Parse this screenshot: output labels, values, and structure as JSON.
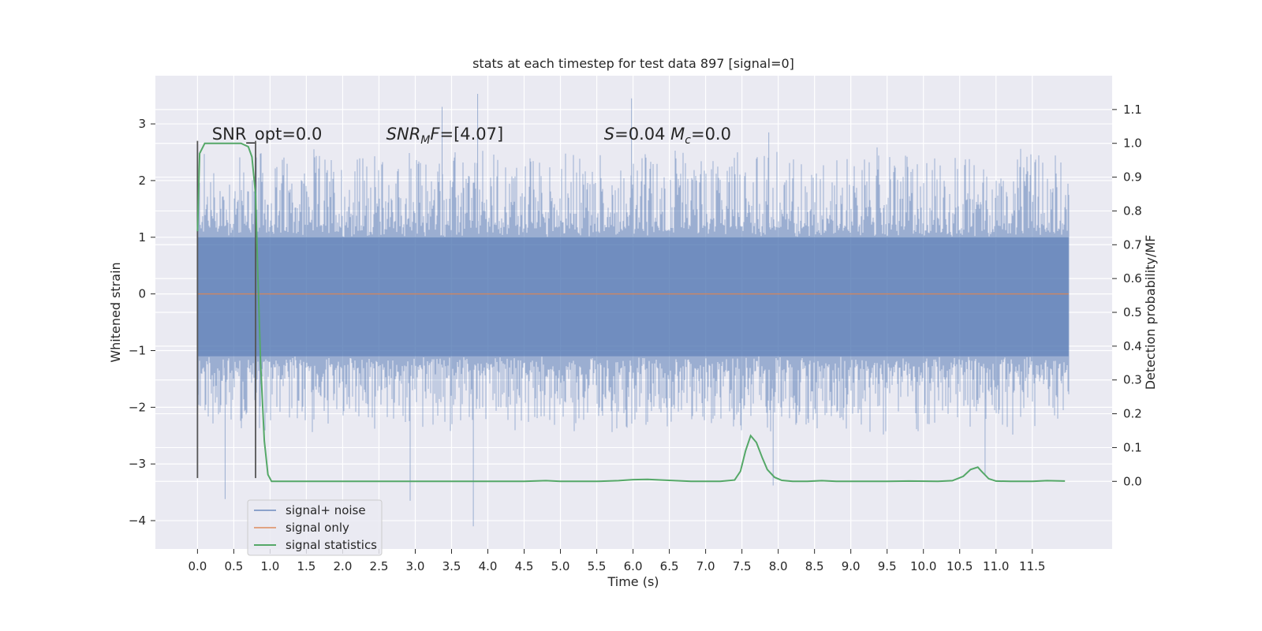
{
  "chart_data": {
    "type": "line",
    "title": "stats at each timestep for test data 897 [signal=0]",
    "xlabel": "Time (s)",
    "ylabel": "Whitened strain",
    "y2label": "Detection probability/MF",
    "xlim": [
      -0.58,
      12.6
    ],
    "ylim": [
      -4.5,
      3.85
    ],
    "y2lim": [
      -0.2,
      1.2
    ],
    "x_ticks": [
      0.0,
      0.5,
      1.0,
      1.5,
      2.0,
      2.5,
      3.0,
      3.5,
      4.0,
      4.5,
      5.0,
      5.5,
      6.0,
      6.5,
      7.0,
      7.5,
      8.0,
      8.5,
      9.0,
      9.5,
      10.0,
      10.5,
      11.0,
      11.5
    ],
    "x_tick_labels": [
      "0.0",
      "0.5",
      "1.0",
      "1.5",
      "2.0",
      "2.5",
      "3.0",
      "3.5",
      "4.0",
      "4.5",
      "5.0",
      "5.5",
      "6.0",
      "6.5",
      "7.0",
      "7.5",
      "8.0",
      "8.5",
      "9.0",
      "9.5",
      "10.0",
      "10.5",
      "11.0",
      "11.5"
    ],
    "y_ticks": [
      -4,
      -3,
      -2,
      -1,
      0,
      1,
      2,
      3
    ],
    "y_tick_labels": [
      "−4",
      "−3",
      "−2",
      "−1",
      "0",
      "1",
      "2",
      "3"
    ],
    "y2_ticks": [
      0.0,
      0.1,
      0.2,
      0.3,
      0.4,
      0.5,
      0.6,
      0.7,
      0.8,
      0.9,
      1.0,
      1.1
    ],
    "y2_tick_labels": [
      "0.0",
      "0.1",
      "0.2",
      "0.3",
      "0.4",
      "0.5",
      "0.6",
      "0.7",
      "0.8",
      "0.9",
      "1.0",
      "1.1"
    ],
    "grid": true,
    "legend_position": "lower-left",
    "colors": {
      "background": "#eaeaf2",
      "grid": "#ffffff",
      "noise": "#4c72b0",
      "signal": "#dd8452",
      "stats": "#55a868",
      "marker": "#555555"
    },
    "series": [
      {
        "name": "signal+ noise",
        "axis": "left",
        "x_range": [
          0.0,
          12.0
        ],
        "band": [
          -1.1,
          1.0
        ],
        "envelope_typical": [
          -2.3,
          2.4
        ],
        "extremes": [
          {
            "x": 0.38,
            "y": -3.62
          },
          {
            "x": 2.93,
            "y": -3.65
          },
          {
            "x": 3.37,
            "y": 3.3
          },
          {
            "x": 3.8,
            "y": -4.1
          },
          {
            "x": 3.86,
            "y": 3.53
          },
          {
            "x": 5.98,
            "y": 3.45
          },
          {
            "x": 7.87,
            "y": 2.85
          },
          {
            "x": 7.93,
            "y": -3.38
          },
          {
            "x": 10.85,
            "y": -3.2
          }
        ]
      },
      {
        "name": "signal only",
        "axis": "left",
        "x": [
          0.0,
          12.0
        ],
        "y": [
          0.0,
          0.0
        ]
      },
      {
        "name": "signal statistics",
        "axis": "right",
        "x": [
          0.0,
          0.03,
          0.1,
          0.17,
          0.3,
          0.45,
          0.6,
          0.7,
          0.75,
          0.8,
          0.83,
          0.87,
          0.92,
          0.97,
          1.02,
          1.1,
          1.5,
          2.5,
          3.5,
          4.5,
          4.8,
          5.0,
          5.5,
          5.8,
          6.0,
          6.2,
          6.4,
          6.8,
          7.2,
          7.4,
          7.48,
          7.55,
          7.62,
          7.7,
          7.78,
          7.85,
          7.95,
          8.05,
          8.2,
          8.4,
          8.6,
          8.8,
          9.0,
          9.5,
          9.8,
          10.2,
          10.4,
          10.55,
          10.65,
          10.75,
          10.8,
          10.9,
          11.0,
          11.2,
          11.5,
          11.7,
          11.95
        ],
        "y": [
          0.74,
          0.97,
          1.0,
          1.0,
          1.0,
          1.0,
          1.0,
          0.99,
          0.96,
          0.85,
          0.62,
          0.35,
          0.12,
          0.02,
          0.0,
          0.0,
          0.0,
          0.0,
          0.0,
          0.0,
          0.002,
          0.0,
          0.0,
          0.002,
          0.005,
          0.006,
          0.004,
          0.0,
          0.0,
          0.004,
          0.03,
          0.09,
          0.135,
          0.115,
          0.07,
          0.035,
          0.012,
          0.003,
          0.0,
          0.0,
          0.002,
          0.0,
          0.0,
          0.0,
          0.001,
          0.0,
          0.002,
          0.015,
          0.035,
          0.042,
          0.03,
          0.008,
          0.001,
          0.0,
          0.0,
          0.002,
          0.001
        ]
      }
    ],
    "markers": [
      {
        "x": 0.0,
        "y_range": [
          -3.25,
          2.7
        ]
      },
      {
        "x": 0.8,
        "y_range": [
          -3.25,
          2.7
        ]
      }
    ],
    "annotations": [
      {
        "text": "SNR_opt=0.0",
        "x": 0.2,
        "y": 2.72
      },
      {
        "text": "SNR_MF=[4.07]",
        "x": 2.6,
        "y": 2.72
      },
      {
        "text": "S=0.04   M_c=0.0",
        "x": 5.6,
        "y": 2.72
      }
    ]
  }
}
